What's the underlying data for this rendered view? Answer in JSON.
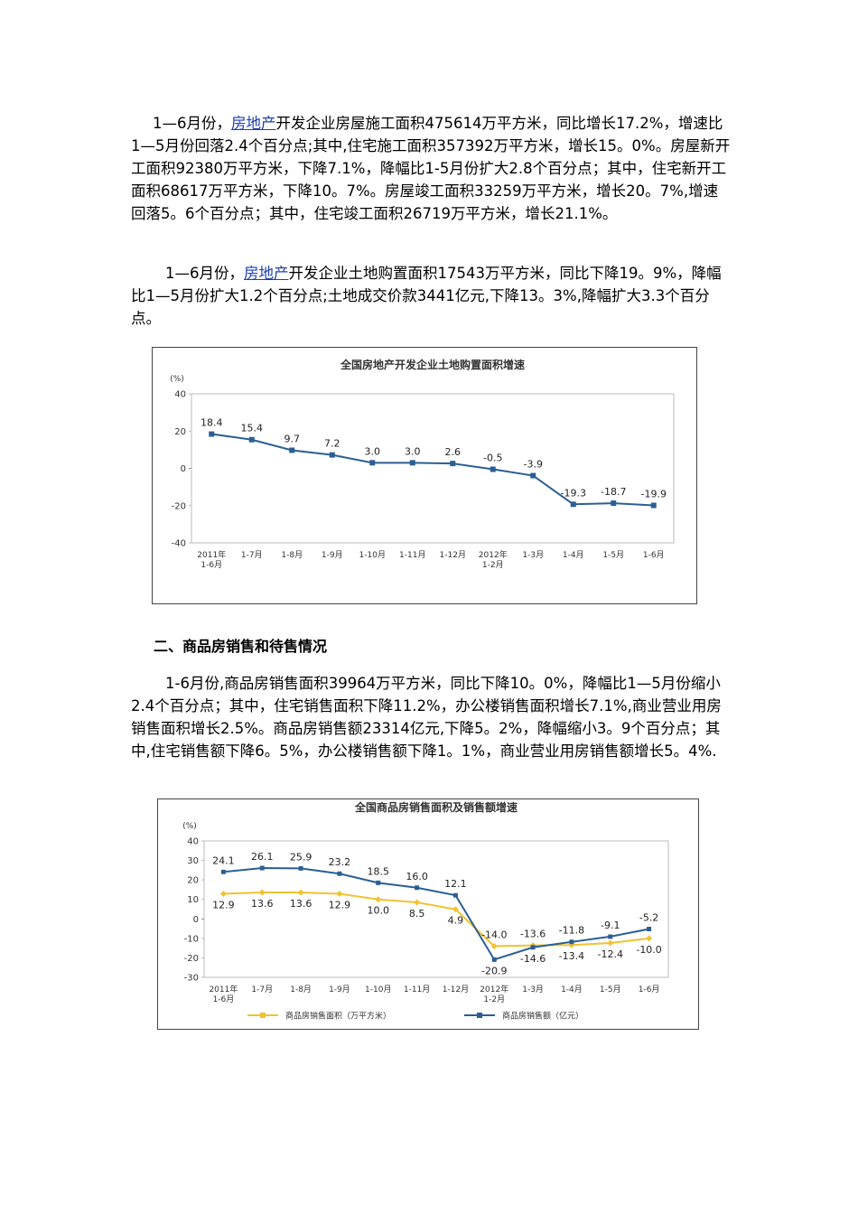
{
  "paragraphs": [
    {
      "before": "1—6月份，",
      "link": "房地产",
      "after": "开发企业房屋施工面积475614万平方米，同比增长17.2%，增速比1—5月份回落2.4个百分点;其中,住宅施工面积357392万平方米，增长15。0%。房屋新开工面积92380万平方米，下降7.1%，降幅比1-5月份扩大2.8个百分点；其中，住宅新开工面积68617万平方米，下降10。7%。房屋竣工面积33259万平方米，增长20。7%,增速回落5。6个百分点；其中，住宅竣工面积26719万平方米，增长21.1%。"
    },
    {
      "before": "1—6月份，",
      "link": "房地产",
      "after": "开发企业土地购置面积17543万平方米，同比下降19。9%，降幅比1—5月份扩大1.2个百分点;土地成交价款3441亿元,下降13。3%,降幅扩大3.3个百分点。"
    }
  ],
  "heading": "二、商品房销售和待售情况",
  "paragraph3": "1-6月份,商品房销售面积39964万平方米，同比下降10。0%，降幅比1—5月份缩小2.4个百分点；其中，住宅销售面积下降11.2%，办公楼销售面积增长7.1%,商业营业用房销售面积增长2.5%。商品房销售额23314亿元,下降5。2%，降幅缩小3。9个百分点；其中,住宅销售额下降6。5%，办公楼销售额下降1。1%，商业营业用房销售额增长5。4%.",
  "chart_data": [
    {
      "type": "line",
      "title": "全国房地产开发企业土地购置面积增速",
      "y_unit": "(%)",
      "categories": [
        "2011年\n1-6月",
        "1-7月",
        "1-8月",
        "1-9月",
        "1-10月",
        "1-11月",
        "1-12月",
        "2012年\n1-2月",
        "1-3月",
        "1-4月",
        "1-5月",
        "1-6月"
      ],
      "series": [
        {
          "name": "土地购置面积增速",
          "color": "#2b5f93",
          "values": [
            18.4,
            15.4,
            9.7,
            7.2,
            3.0,
            3.0,
            2.6,
            -0.5,
            -3.9,
            -19.3,
            -18.7,
            -19.9
          ],
          "value_labels": [
            "18.4",
            "15.4",
            "9.7",
            "7.2",
            "3.0",
            "3.0",
            "2.6",
            "-0.5",
            "-3.9",
            "-19.3",
            "-18.7",
            "-19.9"
          ]
        }
      ],
      "ylim": [
        -40,
        40
      ],
      "yticks": [
        -40,
        -20,
        0,
        20,
        40
      ],
      "grid": false,
      "legend": false
    },
    {
      "type": "line",
      "title": "全国商品房销售面积及销售额增速",
      "y_unit": "(%)",
      "categories": [
        "2011年\n1-6月",
        "1-7月",
        "1-8月",
        "1-9月",
        "1-10月",
        "1-11月",
        "1-12月",
        "2012年\n1-2月",
        "1-3月",
        "1-4月",
        "1-5月",
        "1-6月"
      ],
      "series": [
        {
          "name": "商品房销售面积（万平方米）",
          "color": "#f2c230",
          "values": [
            12.9,
            13.6,
            13.6,
            12.9,
            10.0,
            8.5,
            4.9,
            -14.0,
            -13.6,
            -13.4,
            -12.4,
            -10.0
          ],
          "value_labels": [
            "12.9",
            "13.6",
            "13.6",
            "12.9",
            "10.0",
            "8.5",
            "4.9",
            "-14.0",
            "-13.6",
            "-13.4",
            "-12.4",
            "-10.0"
          ]
        },
        {
          "name": "商品房销售额（亿元）",
          "color": "#2b5f93",
          "values": [
            24.1,
            26.1,
            25.9,
            23.2,
            18.5,
            16.0,
            12.1,
            -20.9,
            -14.6,
            -11.8,
            -9.1,
            -5.2
          ],
          "value_labels": [
            "24.1",
            "26.1",
            "25.9",
            "23.2",
            "18.5",
            "16.0",
            "12.1",
            "-20.9",
            "-14.6",
            "-11.8",
            "-9.1",
            "-5.2"
          ]
        }
      ],
      "ylim": [
        -30,
        40
      ],
      "yticks": [
        -30,
        -20,
        -10,
        0,
        10,
        20,
        30,
        40
      ],
      "grid": false,
      "legend": "bottom"
    }
  ]
}
